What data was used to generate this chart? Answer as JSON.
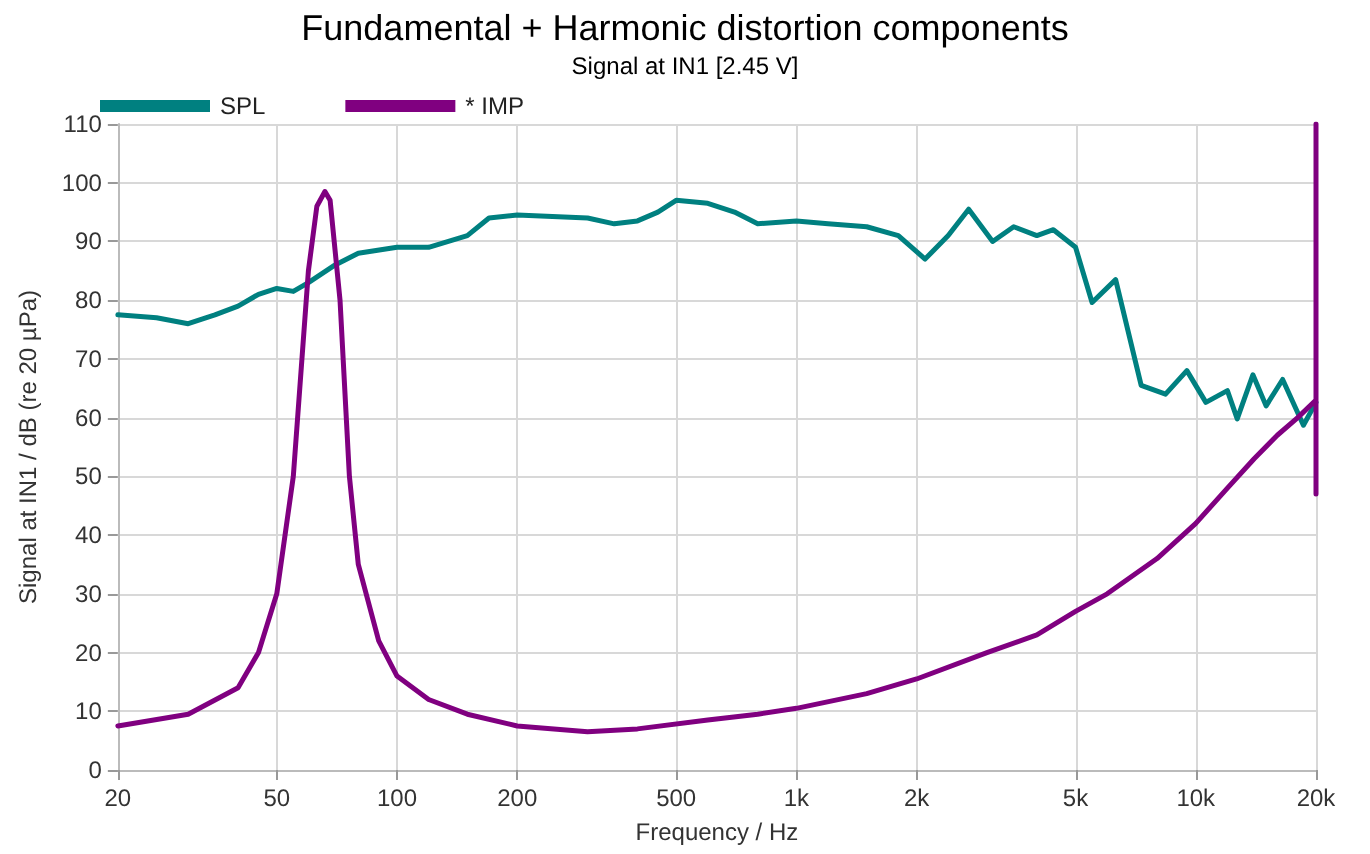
{
  "chart_data": {
    "type": "line",
    "title": "Fundamental + Harmonic distortion components",
    "subtitle": "Signal at IN1 [2.45 V]",
    "xlabel": "Frequency / Hz",
    "ylabel": "Signal at IN1 / dB (re 20 µPa)",
    "log": "x",
    "grid": true,
    "legend": "top left",
    "marker": "none",
    "line_style": "solid",
    "xlim": [
      20,
      20000
    ],
    "xticks": [
      20,
      50,
      100,
      200,
      500,
      {
        "value": 1000,
        "label": "1k"
      },
      {
        "value": 2000,
        "label": "2k"
      },
      {
        "value": 5000,
        "label": "5k"
      },
      {
        "value": 10000,
        "label": "10k"
      },
      {
        "value": 20000,
        "label": "20k"
      }
    ],
    "ylim": [
      0,
      110
    ],
    "yticks": [
      0,
      10,
      20,
      30,
      40,
      50,
      60,
      70,
      80,
      90,
      100,
      110
    ],
    "series": [
      {
        "name": "SPL",
        "color": "#008080",
        "x": [
          20,
          25,
          30,
          35,
          40,
          45,
          50,
          55,
          60,
          70,
          80,
          100,
          120,
          150,
          170,
          200,
          300,
          350,
          400,
          450,
          500,
          600,
          700,
          800,
          1000,
          1200,
          1500,
          1800,
          2100,
          2400,
          2700,
          3100,
          3500,
          4000,
          4400,
          5000,
          5500,
          6300,
          7300,
          8400,
          9500,
          10600,
          12000,
          12700,
          13900,
          15000,
          16500,
          18600,
          20000
        ],
        "values": [
          77.5,
          77,
          76,
          77.5,
          79,
          81,
          82,
          81.5,
          83,
          86,
          88,
          89,
          89,
          91,
          94,
          94.5,
          94,
          93,
          93.5,
          95,
          97,
          96.5,
          95,
          93,
          93.5,
          93,
          92.5,
          91,
          87,
          91,
          95.5,
          90,
          92.5,
          91,
          92,
          89,
          79.6,
          83.5,
          65.5,
          64,
          68,
          62.6,
          64.6,
          59.8,
          67.3,
          62,
          66.5,
          58.7,
          62.6
        ]
      },
      {
        "name": "* IMP",
        "color": "#800080",
        "x": [
          20,
          30,
          40,
          45,
          50,
          55,
          60,
          63,
          66,
          68,
          72,
          76,
          80,
          90,
          100,
          120,
          150,
          200,
          300,
          400,
          600,
          800,
          1000,
          1500,
          2000,
          3000,
          4000,
          5000,
          6000,
          8000,
          10000,
          12000,
          14000,
          16000,
          18000,
          20000,
          20000,
          20000
        ],
        "values": [
          7.5,
          9.5,
          14,
          20,
          30,
          50,
          85,
          96,
          98.5,
          97,
          80,
          50,
          35,
          22,
          16,
          12,
          9.5,
          7.5,
          6.5,
          7,
          8.5,
          9.5,
          10.5,
          13,
          15.5,
          20,
          23,
          27,
          30,
          36,
          42,
          48,
          53,
          57,
          60,
          63,
          110,
          47
        ]
      }
    ]
  }
}
